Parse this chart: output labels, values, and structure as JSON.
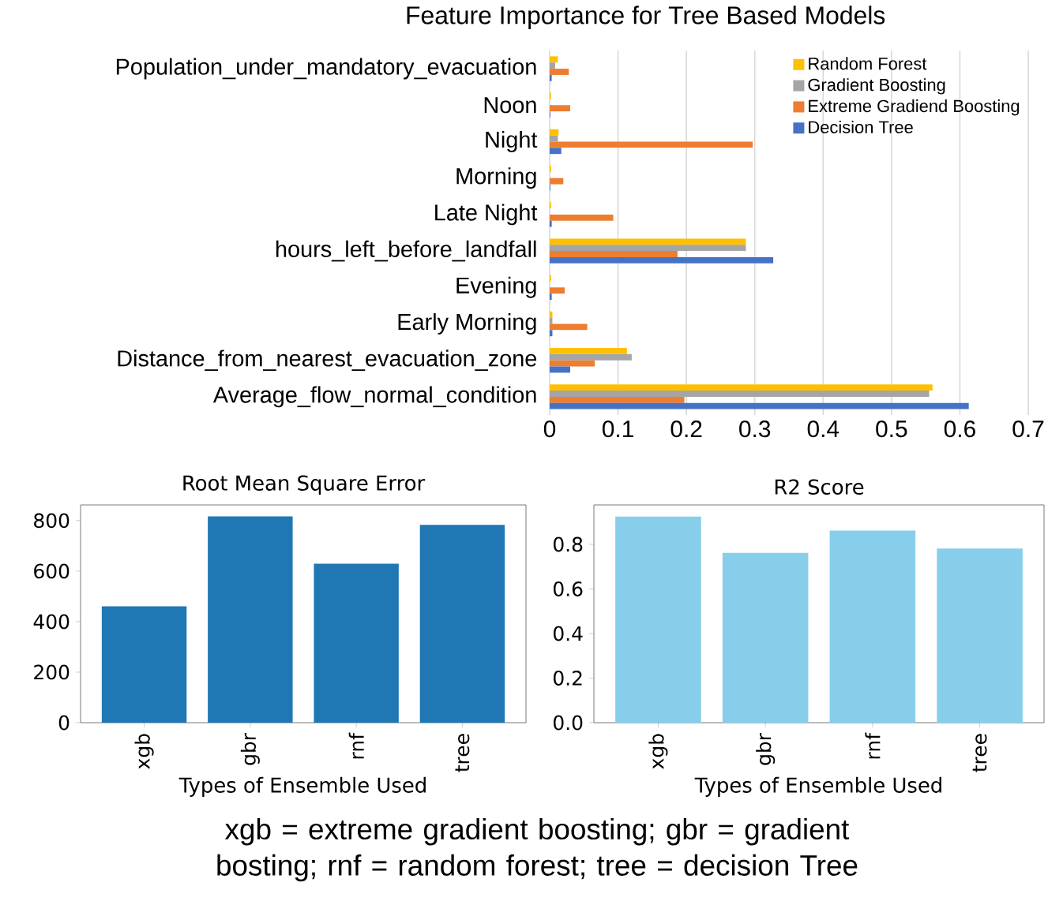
{
  "chart_data": [
    {
      "type": "bar",
      "orientation": "horizontal",
      "title": "Feature Importance for  Tree Based Models",
      "categories": [
        "Population_under_mandatory_evacuation",
        "Noon",
        "Night",
        "Morning",
        "Late Night",
        "hours_left_before_landfall",
        "Evening",
        "Early Morning",
        "Distance_from_nearest_evacuation_zone",
        "Average_flow_normal_condition"
      ],
      "series": [
        {
          "name": "Random Forest",
          "color": "#ffc000",
          "values": [
            0.012,
            0.002,
            0.013,
            0.002,
            0.002,
            0.287,
            0.002,
            0.004,
            0.113,
            0.56
          ]
        },
        {
          "name": "Gradient Boosting",
          "color": "#a5a5a5",
          "values": [
            0.008,
            null,
            0.012,
            null,
            null,
            0.287,
            null,
            0.004,
            0.12,
            0.555
          ]
        },
        {
          "name": "Extreme Gradiend Boosting",
          "color": "#ed7d31",
          "values": [
            0.028,
            0.03,
            0.297,
            0.02,
            0.093,
            0.187,
            0.022,
            0.055,
            0.066,
            0.197
          ]
        },
        {
          "name": "Decision Tree",
          "color": "#4472c4",
          "values": [
            0.003,
            0.001,
            0.017,
            0.001,
            0.003,
            0.327,
            0.003,
            0.004,
            0.03,
            0.613
          ]
        }
      ],
      "xlim": [
        0,
        0.7
      ],
      "xticks": [
        0,
        0.1,
        0.2,
        0.3,
        0.4,
        0.5,
        0.6,
        0.7
      ],
      "grid": "x",
      "legend": "top right"
    },
    {
      "type": "bar",
      "title": "Root Mean Square Error",
      "xlabel": "Types of Ensemble  Used",
      "categories": [
        "xgb",
        "gbr",
        "rnf",
        "tree"
      ],
      "values": [
        461,
        817,
        629,
        783
      ],
      "color": "#1f77b4",
      "ylim": [
        0,
        862
      ],
      "yticks": [
        0,
        200,
        400,
        600,
        800
      ]
    },
    {
      "type": "bar",
      "title": "R2 Score",
      "xlabel": "Types of Ensemble  Used",
      "categories": [
        "xgb",
        "gbr",
        "rnf",
        "tree"
      ],
      "values": [
        0.925,
        0.762,
        0.862,
        0.781
      ],
      "color": "#87ceeb",
      "ylim": [
        0,
        0.977
      ],
      "yticks": [
        {
          "value": 0,
          "label": "0.0"
        },
        0.2,
        0.4,
        0.6,
        0.8
      ],
      "annotations": [
        "xgb = extreme gradient boosting; gbr = gradient bosting; rnf = random forest; tree = decision Tree"
      ]
    }
  ]
}
